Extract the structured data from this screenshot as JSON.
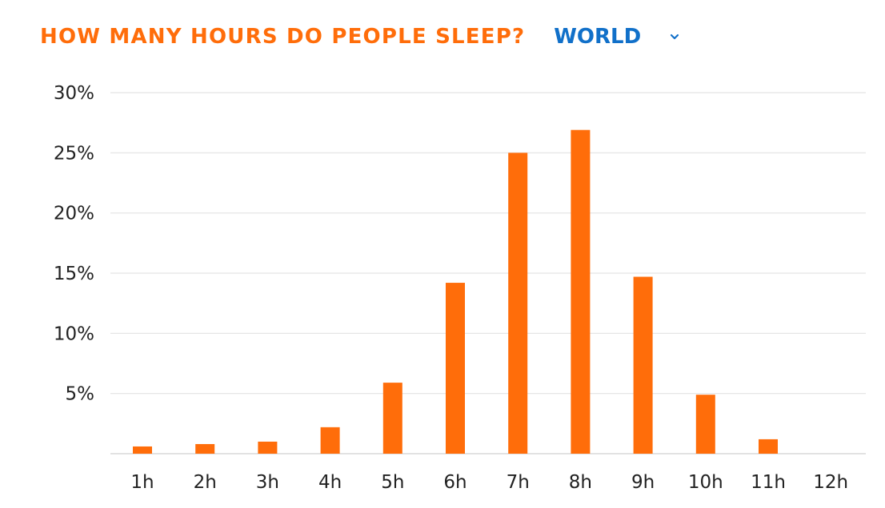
{
  "header": {
    "title": "HOW MANY HOURS DO PEOPLE SLEEP?",
    "region": "WORLD",
    "region_icon": "chevron-down-icon"
  },
  "colors": {
    "accent": "#ff6d0a",
    "link": "#1170c9",
    "grid": "#e3e3e3"
  },
  "chart_data": {
    "type": "bar",
    "title": "HOW MANY HOURS DO PEOPLE SLEEP?",
    "categories": [
      "1h",
      "2h",
      "3h",
      "4h",
      "5h",
      "6h",
      "7h",
      "8h",
      "9h",
      "10h",
      "11h",
      "12h"
    ],
    "values": [
      0.6,
      0.8,
      1.0,
      2.2,
      5.9,
      14.2,
      25.0,
      26.9,
      14.7,
      4.9,
      1.2,
      0
    ],
    "value_unit": "%",
    "ylim": [
      0,
      30
    ],
    "yticks": [
      5,
      10,
      15,
      20,
      25,
      30
    ],
    "ytick_labels": [
      "5%",
      "10%",
      "15%",
      "20%",
      "25%",
      "30%"
    ],
    "grid": true,
    "legend": "none",
    "xlabel": "",
    "ylabel": ""
  }
}
